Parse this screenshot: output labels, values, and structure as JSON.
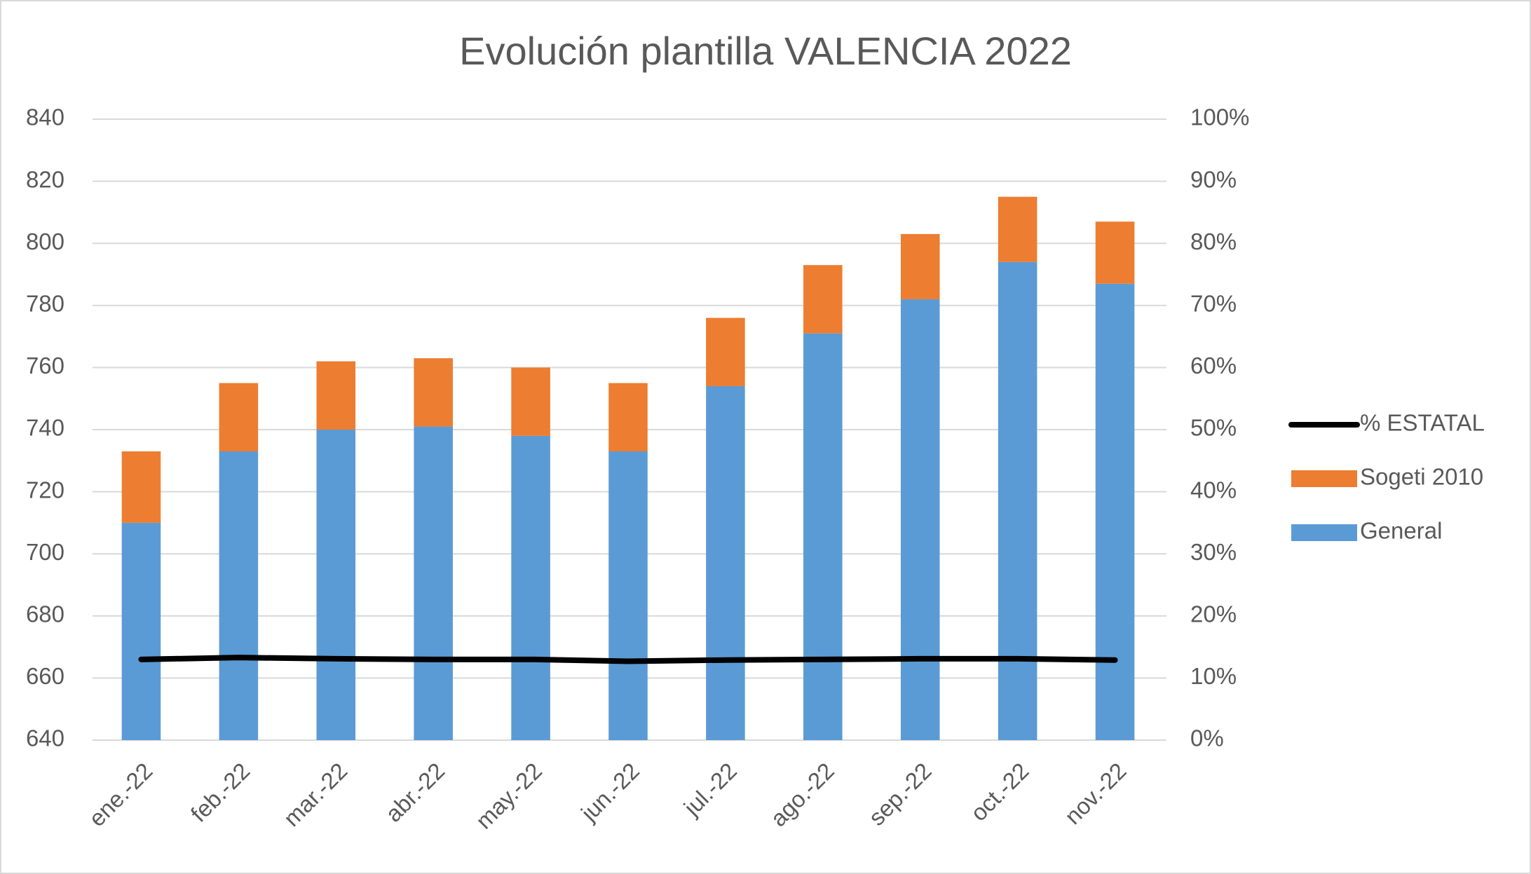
{
  "chart_data": {
    "type": "bar",
    "stacked": true,
    "title": "Evolución plantilla VALENCIA 2022",
    "categories": [
      "ene.-22",
      "feb.-22",
      "mar.-22",
      "abr.-22",
      "may.-22",
      "jun.-22",
      "jul.-22",
      "ago.-22",
      "sep.-22",
      "oct.-22",
      "nov.-22"
    ],
    "series": [
      {
        "name": "General",
        "type": "bar",
        "color": "#5b9bd5",
        "values": [
          710,
          733,
          740,
          741,
          738,
          733,
          754,
          771,
          782,
          794,
          787
        ]
      },
      {
        "name": "Sogeti 2010",
        "type": "bar",
        "color": "#ed7d31",
        "values": [
          23,
          22,
          22,
          22,
          22,
          22,
          22,
          22,
          21,
          21,
          20
        ]
      },
      {
        "name": "% ESTATAL",
        "type": "line",
        "axis": "y2",
        "color": "#000000",
        "values": [
          13.0,
          13.3,
          13.1,
          13.0,
          13.0,
          12.7,
          12.9,
          13.0,
          13.1,
          13.1,
          12.9
        ]
      }
    ],
    "ylim": [
      640,
      840
    ],
    "yticks": [
      640,
      660,
      680,
      700,
      720,
      740,
      760,
      780,
      800,
      820,
      840
    ],
    "y2lim": [
      0,
      100
    ],
    "y2ticks": [
      {
        "value": 0,
        "label": "0%"
      },
      {
        "value": 10,
        "label": "10%"
      },
      {
        "value": 20,
        "label": "20%"
      },
      {
        "value": 30,
        "label": "30%"
      },
      {
        "value": 40,
        "label": "40%"
      },
      {
        "value": 50,
        "label": "50%"
      },
      {
        "value": 60,
        "label": "60%"
      },
      {
        "value": 70,
        "label": "70%"
      },
      {
        "value": 80,
        "label": "80%"
      },
      {
        "value": 90,
        "label": "90%"
      },
      {
        "value": 100,
        "label": "100%"
      }
    ],
    "grid": true,
    "legend": "right"
  }
}
